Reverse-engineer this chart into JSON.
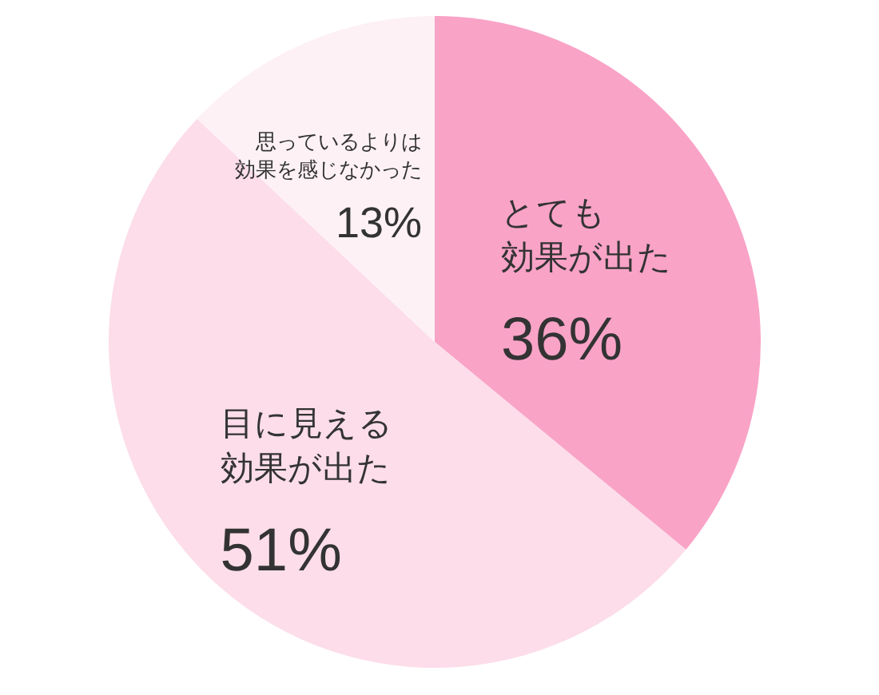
{
  "chart_data": {
    "type": "pie",
    "categories": [
      "とても効果が出た",
      "目に見える効果が出た",
      "思っているよりは効果を感じなかった"
    ],
    "values": [
      36,
      51,
      13
    ],
    "value_labels": [
      "36%",
      "51%",
      "13%"
    ],
    "colors": [
      "#f9a3c7",
      "#fcdde9",
      "#fdf1f6"
    ],
    "legend": false
  }
}
